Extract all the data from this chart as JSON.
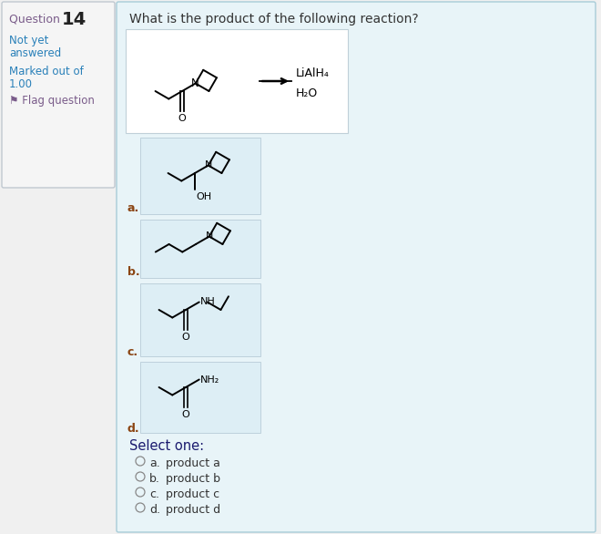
{
  "bg_color": "#f0f0f0",
  "main_bg": "#e8f4f8",
  "sidebar_bg": "#f5f5f5",
  "question_word_color": "#7a5c8a",
  "question_num_color": "#333333",
  "not_yet_color": "#2980b9",
  "marked_color": "#2980b9",
  "flag_color": "#7a5c8a",
  "title_color": "#333333",
  "label_color": "#8B4513",
  "select_color": "#1a1a6e",
  "option_color": "#333333",
  "title_text": "What is the product of the following reaction?",
  "question_word": "Question ",
  "question_num": "14",
  "not_yet": "Not yet",
  "answered": "answered",
  "marked_out": "Marked out of",
  "marked_val": "1.00",
  "flag_text": "Flag question",
  "options_label": "Select one:",
  "options": [
    "product a",
    "product b",
    "product c",
    "product d"
  ],
  "opt_letters": [
    "a.",
    "b.",
    "c.",
    "d."
  ]
}
